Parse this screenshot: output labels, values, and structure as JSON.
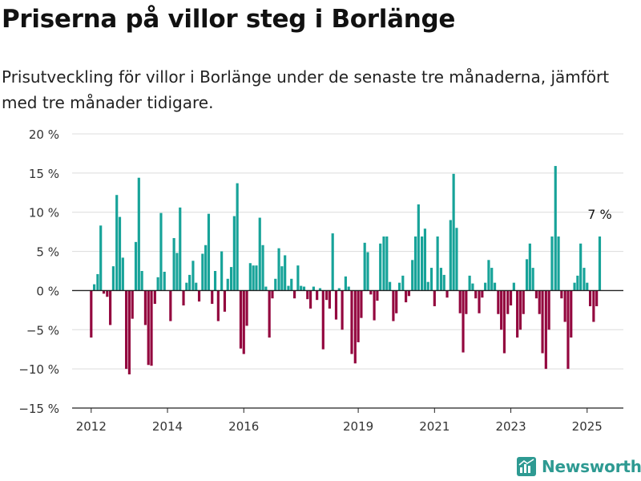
{
  "title": "Priserna på villor steg i Borlänge",
  "subtitle": "Prisutveckling för villor i Borlänge under de senaste tre månaderna, jämfört med tre månader tidigare.",
  "brand": {
    "name": "Newsworthy",
    "icon": "newsworthy-logo-icon"
  },
  "colors": {
    "positive": "#17a399",
    "negative": "#93063e",
    "grid": "#dcdcdc",
    "zero": "#222222"
  },
  "chart_data": {
    "type": "bar",
    "title": "",
    "xlabel": "",
    "ylabel": "",
    "ylim": [
      -15,
      20
    ],
    "y_ticks": [
      -15,
      -10,
      -5,
      0,
      5,
      10,
      15,
      20
    ],
    "y_tick_labels": [
      "−15 %",
      "−10 %",
      "−5 %",
      "0 %",
      "5 %",
      "10 %",
      "15 %",
      "20 %"
    ],
    "x_ticks": [
      2012,
      2014,
      2016,
      2019,
      2021,
      2023,
      2025
    ],
    "x_tick_labels": [
      "2012",
      "2014",
      "2016",
      "2019",
      "2021",
      "2023",
      "2025"
    ],
    "x_range": [
      2011.5,
      2025.95
    ],
    "x": [
      2012.0,
      2012.08,
      2012.17,
      2012.25,
      2012.33,
      2012.42,
      2012.5,
      2012.58,
      2012.67,
      2012.75,
      2012.83,
      2012.92,
      2013.0,
      2013.08,
      2013.17,
      2013.25,
      2013.33,
      2013.42,
      2013.5,
      2013.58,
      2013.67,
      2013.75,
      2013.83,
      2013.92,
      2014.0,
      2014.08,
      2014.17,
      2014.25,
      2014.33,
      2014.42,
      2014.5,
      2014.58,
      2014.67,
      2014.75,
      2014.83,
      2014.92,
      2015.0,
      2015.08,
      2015.17,
      2015.25,
      2015.33,
      2015.42,
      2015.5,
      2015.58,
      2015.67,
      2015.75,
      2015.83,
      2015.92,
      2016.0,
      2016.08,
      2016.17,
      2016.25,
      2016.33,
      2016.42,
      2016.5,
      2016.58,
      2016.67,
      2016.75,
      2016.83,
      2016.92,
      2017.0,
      2017.08,
      2017.17,
      2017.25,
      2017.33,
      2017.42,
      2017.5,
      2017.58,
      2017.67,
      2017.75,
      2017.83,
      2017.92,
      2018.0,
      2018.08,
      2018.17,
      2018.25,
      2018.33,
      2018.42,
      2018.5,
      2018.58,
      2018.67,
      2018.75,
      2018.83,
      2018.92,
      2019.0,
      2019.08,
      2019.17,
      2019.25,
      2019.33,
      2019.42,
      2019.5,
      2019.58,
      2019.67,
      2019.75,
      2019.83,
      2019.92,
      2020.0,
      2020.08,
      2020.17,
      2020.25,
      2020.33,
      2020.42,
      2020.5,
      2020.58,
      2020.67,
      2020.75,
      2020.83,
      2020.92,
      2021.0,
      2021.08,
      2021.17,
      2021.25,
      2021.33,
      2021.42,
      2021.5,
      2021.58,
      2021.67,
      2021.75,
      2021.83,
      2021.92,
      2022.0,
      2022.08,
      2022.17,
      2022.25,
      2022.33,
      2022.42,
      2022.5,
      2022.58,
      2022.67,
      2022.75,
      2022.83,
      2022.92,
      2023.0,
      2023.08,
      2023.17,
      2023.25,
      2023.33,
      2023.42,
      2023.5,
      2023.58,
      2023.67,
      2023.75,
      2023.83,
      2023.92,
      2024.0,
      2024.08,
      2024.17,
      2024.25,
      2024.33,
      2024.42,
      2024.5,
      2024.58,
      2024.67,
      2024.75,
      2024.83,
      2024.92,
      2025.0,
      2025.08,
      2025.17,
      2025.25,
      2025.33
    ],
    "values": [
      -6,
      0.8,
      2.1,
      8.3,
      -0.4,
      -0.8,
      -4.4,
      3.1,
      12.2,
      9.4,
      4.2,
      -10,
      -10.7,
      -3.6,
      6.2,
      14.4,
      2.5,
      -4.4,
      -9.5,
      -9.6,
      -1.7,
      1.7,
      9.9,
      2.4,
      0,
      -3.9,
      6.7,
      4.8,
      10.6,
      -1.9,
      1,
      2,
      3.8,
      1,
      -1.4,
      4.7,
      5.8,
      9.8,
      -1.7,
      2.5,
      -3.9,
      5,
      -2.7,
      1.5,
      3,
      9.5,
      13.7,
      -7.4,
      -8.1,
      -4.5,
      3.5,
      3.2,
      3.2,
      9.3,
      5.8,
      0.5,
      -6,
      -1,
      1.5,
      5.4,
      3.1,
      4.5,
      0.6,
      1.5,
      -1,
      3.2,
      0.6,
      0.5,
      -1.1,
      -2.3,
      0.5,
      -1.2,
      0.3,
      -7.5,
      -1.2,
      -2.3,
      7.3,
      -3.7,
      0.3,
      -5,
      1.8,
      0.5,
      -8.1,
      -9.3,
      -6.6,
      -3.5,
      6.1,
      4.9,
      -0.5,
      -3.8,
      -1.3,
      6,
      6.9,
      6.9,
      1.1,
      -3.9,
      -2.9,
      1,
      1.9,
      -1.5,
      -0.7,
      3.9,
      6.9,
      11,
      6.9,
      7.9,
      1.1,
      2.9,
      -2,
      6.9,
      2.9,
      2,
      -0.9,
      9,
      14.9,
      8,
      -2.9,
      -7.9,
      -3,
      1.9,
      0.9,
      -1,
      -2.9,
      -0.9,
      1,
      3.9,
      2.9,
      1,
      -3,
      -5,
      -8,
      -3,
      -1.9,
      1,
      -6,
      -5,
      -3,
      4,
      6,
      2.9,
      -1,
      -3,
      -8,
      -10,
      -5,
      6.9,
      15.9,
      6.9,
      -1,
      -4,
      -10,
      -6,
      1,
      1.9,
      6,
      2.9,
      1,
      -2,
      -4,
      -2,
      6.9
    ],
    "annotations": [
      {
        "text": "7 %",
        "x": 2025.33,
        "y": 6.9
      }
    ]
  }
}
